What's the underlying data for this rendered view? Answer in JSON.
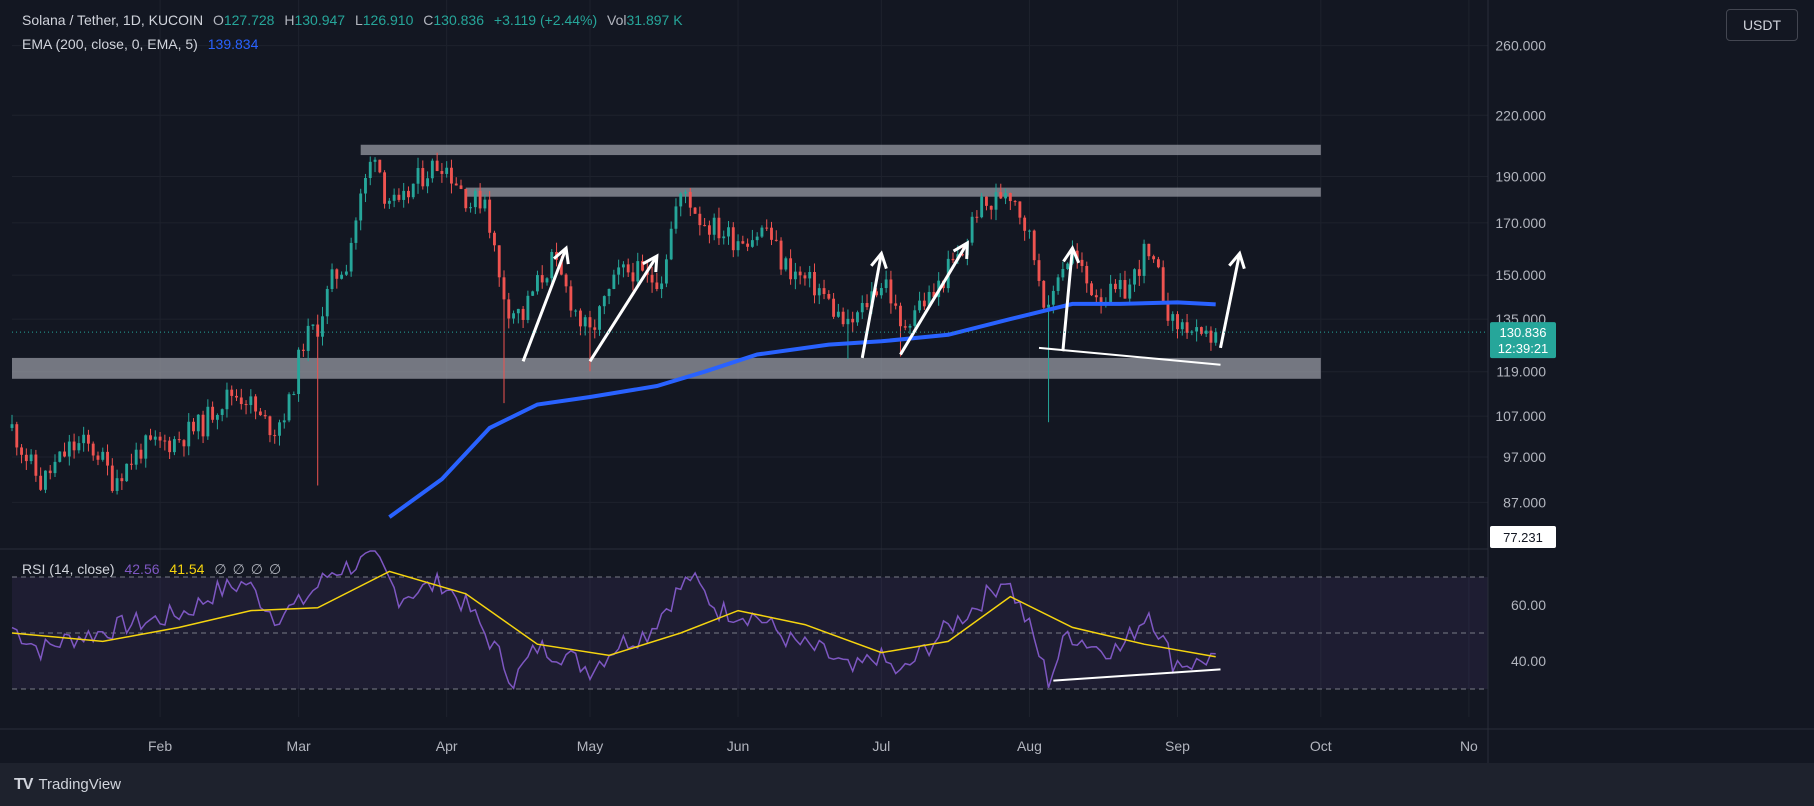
{
  "header": {
    "symbol": "Solana / Tether, 1D, KUCOIN",
    "open_label": "O",
    "open": "127.728",
    "high_label": "H",
    "high": "130.947",
    "low_label": "L",
    "low": "126.910",
    "close_label": "C",
    "close": "130.836",
    "change": "+3.119 (+2.44%)",
    "vol_label": "Vol",
    "volume": "31.897 K",
    "ema_label": "EMA (200, close, 0, EMA, 5)",
    "ema_value": "139.834"
  },
  "currency": "USDT",
  "price_tag": {
    "value": "130.836",
    "countdown": "12:39:21"
  },
  "scale_tag": "77.231",
  "rsi": {
    "label": "RSI (14, close)",
    "value": "42.56",
    "ma_value": "41.54",
    "empty_values": [
      "∅",
      "∅",
      "∅",
      "∅"
    ]
  },
  "brand": {
    "name": "TradingView",
    "mark": "TV"
  },
  "colors": {
    "up": "#26a69a",
    "down": "#ef5350",
    "ema": "#2962ff",
    "rsi": "#7e57c2",
    "rsi_ma": "#f5d40f",
    "zone": "#9598a1"
  },
  "chart_data": [
    {
      "type": "candlestick",
      "title": "Solana / Tether, 1D, KUCOIN",
      "y_scale": "log",
      "ylim": [
        78,
        290
      ],
      "price_ticks": [
        "260.000",
        "220.000",
        "190.000",
        "170.000",
        "150.000",
        "135.000",
        "119.000",
        "107.000",
        "97.000",
        "87.000"
      ],
      "x_ticks": [
        "Feb",
        "Mar",
        "Apr",
        "May",
        "Jun",
        "Jul",
        "Aug",
        "Sep",
        "Oct",
        "No"
      ],
      "x_tick_dates": [
        "2024-02-01",
        "2024-03-01",
        "2024-04-01",
        "2024-05-01",
        "2024-06-01",
        "2024-07-01",
        "2024-08-01",
        "2024-09-01",
        "2024-10-01",
        "2024-11-01"
      ],
      "xlim": [
        "2024-01-01",
        "2024-11-05"
      ],
      "close_series": [
        [
          "2024-01-01",
          104
        ],
        [
          "2024-01-04",
          97
        ],
        [
          "2024-01-07",
          91
        ],
        [
          "2024-01-10",
          95
        ],
        [
          "2024-01-13",
          99
        ],
        [
          "2024-01-16",
          100
        ],
        [
          "2024-01-19",
          98
        ],
        [
          "2024-01-22",
          92
        ],
        [
          "2024-01-25",
          95
        ],
        [
          "2024-01-28",
          99
        ],
        [
          "2024-02-01",
          100
        ],
        [
          "2024-02-04",
          101
        ],
        [
          "2024-02-07",
          103
        ],
        [
          "2024-02-10",
          105
        ],
        [
          "2024-02-13",
          110
        ],
        [
          "2024-02-16",
          113
        ],
        [
          "2024-02-19",
          112
        ],
        [
          "2024-02-22",
          106
        ],
        [
          "2024-02-25",
          104
        ],
        [
          "2024-02-28",
          110
        ],
        [
          "2024-03-02",
          128
        ],
        [
          "2024-03-05",
          133
        ],
        [
          "2024-03-08",
          148
        ],
        [
          "2024-03-11",
          155
        ],
        [
          "2024-03-14",
          180
        ],
        [
          "2024-03-17",
          203
        ],
        [
          "2024-03-19",
          183
        ],
        [
          "2024-03-22",
          175
        ],
        [
          "2024-03-25",
          186
        ],
        [
          "2024-03-28",
          193
        ],
        [
          "2024-03-31",
          197
        ],
        [
          "2024-04-03",
          188
        ],
        [
          "2024-04-06",
          178
        ],
        [
          "2024-04-09",
          181
        ],
        [
          "2024-04-12",
          148
        ],
        [
          "2024-04-14",
          139
        ],
        [
          "2024-04-17",
          136
        ],
        [
          "2024-04-19",
          144
        ],
        [
          "2024-04-23",
          155
        ],
        [
          "2024-04-26",
          145
        ],
        [
          "2024-04-29",
          134
        ],
        [
          "2024-05-01",
          130
        ],
        [
          "2024-05-04",
          140
        ],
        [
          "2024-05-07",
          150
        ],
        [
          "2024-05-10",
          152
        ],
        [
          "2024-05-13",
          148
        ],
        [
          "2024-05-16",
          150
        ],
        [
          "2024-05-19",
          176
        ],
        [
          "2024-05-21",
          183
        ],
        [
          "2024-05-24",
          172
        ],
        [
          "2024-05-27",
          168
        ],
        [
          "2024-05-31",
          164
        ],
        [
          "2024-06-04",
          165
        ],
        [
          "2024-06-07",
          168
        ],
        [
          "2024-06-10",
          155
        ],
        [
          "2024-06-14",
          149
        ],
        [
          "2024-06-18",
          145
        ],
        [
          "2024-06-21",
          138
        ],
        [
          "2024-06-24",
          132
        ],
        [
          "2024-06-27",
          138
        ],
        [
          "2024-06-30",
          146
        ],
        [
          "2024-07-02",
          148
        ],
        [
          "2024-07-05",
          131
        ],
        [
          "2024-07-08",
          139
        ],
        [
          "2024-07-12",
          143
        ],
        [
          "2024-07-15",
          152
        ],
        [
          "2024-07-18",
          158
        ],
        [
          "2024-07-21",
          176
        ],
        [
          "2024-07-24",
          177
        ],
        [
          "2024-07-27",
          185
        ],
        [
          "2024-07-29",
          181
        ],
        [
          "2024-08-01",
          164
        ],
        [
          "2024-08-03",
          150
        ],
        [
          "2024-08-05",
          136
        ],
        [
          "2024-08-07",
          152
        ],
        [
          "2024-08-10",
          158
        ],
        [
          "2024-08-13",
          147
        ],
        [
          "2024-08-16",
          143
        ],
        [
          "2024-08-19",
          143
        ],
        [
          "2024-08-22",
          146
        ],
        [
          "2024-08-25",
          158
        ],
        [
          "2024-08-28",
          149
        ],
        [
          "2024-08-31",
          133
        ],
        [
          "2024-09-03",
          133
        ],
        [
          "2024-09-06",
          127
        ],
        [
          "2024-09-09",
          130.836
        ]
      ],
      "ema_200": [
        [
          "2024-03-10",
          75
        ],
        [
          "2024-03-20",
          84
        ],
        [
          "2024-03-31",
          92
        ],
        [
          "2024-04-10",
          104
        ],
        [
          "2024-04-20",
          110
        ],
        [
          "2024-05-01",
          112
        ],
        [
          "2024-05-15",
          115
        ],
        [
          "2024-05-25",
          119
        ],
        [
          "2024-06-05",
          124
        ],
        [
          "2024-06-20",
          127
        ],
        [
          "2024-07-01",
          128
        ],
        [
          "2024-07-15",
          130
        ],
        [
          "2024-07-28",
          135
        ],
        [
          "2024-08-10",
          140
        ],
        [
          "2024-08-20",
          140
        ],
        [
          "2024-09-01",
          140.5
        ],
        [
          "2024-09-09",
          139.834
        ]
      ],
      "zones": [
        {
          "dates": [
            "2024-03-14",
            "2024-10-01"
          ],
          "price": [
            200,
            205
          ]
        },
        {
          "dates": [
            "2024-04-05",
            "2024-10-01"
          ],
          "price": [
            181,
            185
          ]
        },
        {
          "dates": [
            "2024-01-01",
            "2024-10-01"
          ],
          "price": [
            117,
            123
          ]
        }
      ],
      "arrows": [
        {
          "from": [
            "2024-04-17",
            122
          ],
          "to": [
            "2024-04-26",
            160
          ]
        },
        {
          "from": [
            "2024-05-01",
            122
          ],
          "to": [
            "2024-05-15",
            157
          ]
        },
        {
          "from": [
            "2024-06-27",
            123
          ],
          "to": [
            "2024-07-01",
            158
          ]
        },
        {
          "from": [
            "2024-07-05",
            124
          ],
          "to": [
            "2024-07-19",
            162
          ]
        },
        {
          "from": [
            "2024-08-08",
            125
          ],
          "to": [
            "2024-08-10",
            160
          ]
        },
        {
          "from": [
            "2024-09-10",
            126
          ],
          "to": [
            "2024-09-14",
            158
          ]
        }
      ],
      "trendline": {
        "from": [
          "2024-08-03",
          126
        ],
        "to": [
          "2024-09-10",
          121
        ]
      }
    },
    {
      "type": "line",
      "title": "RSI (14, close)",
      "ylim": [
        20,
        80
      ],
      "ticks": [
        "60.00",
        "40.00"
      ],
      "bands": [
        30,
        50,
        70
      ],
      "rsi_series": [
        [
          "2024-01-01",
          52
        ],
        [
          "2024-01-07",
          44
        ],
        [
          "2024-01-13",
          48
        ],
        [
          "2024-01-19",
          50
        ],
        [
          "2024-01-25",
          53
        ],
        [
          "2024-02-01",
          55
        ],
        [
          "2024-02-07",
          58
        ],
        [
          "2024-02-13",
          65
        ],
        [
          "2024-02-19",
          68
        ],
        [
          "2024-02-25",
          56
        ],
        [
          "2024-03-01",
          60
        ],
        [
          "2024-03-08",
          72
        ],
        [
          "2024-03-14",
          75
        ],
        [
          "2024-03-17",
          77
        ],
        [
          "2024-03-22",
          63
        ],
        [
          "2024-03-31",
          68
        ],
        [
          "2024-04-06",
          58
        ],
        [
          "2024-04-12",
          42
        ],
        [
          "2024-04-15",
          33
        ],
        [
          "2024-04-20",
          45
        ],
        [
          "2024-04-26",
          42
        ],
        [
          "2024-05-01",
          37
        ],
        [
          "2024-05-07",
          46
        ],
        [
          "2024-05-13",
          50
        ],
        [
          "2024-05-19",
          64
        ],
        [
          "2024-05-22",
          70
        ],
        [
          "2024-05-28",
          58
        ],
        [
          "2024-06-05",
          56
        ],
        [
          "2024-06-12",
          47
        ],
        [
          "2024-06-19",
          43
        ],
        [
          "2024-06-25",
          36
        ],
        [
          "2024-06-30",
          42
        ],
        [
          "2024-07-05",
          35
        ],
        [
          "2024-07-10",
          44
        ],
        [
          "2024-07-15",
          52
        ],
        [
          "2024-07-21",
          60
        ],
        [
          "2024-07-27",
          70
        ],
        [
          "2024-08-01",
          52
        ],
        [
          "2024-08-05",
          33
        ],
        [
          "2024-08-09",
          50
        ],
        [
          "2024-08-15",
          45
        ],
        [
          "2024-08-20",
          44
        ],
        [
          "2024-08-26",
          58
        ],
        [
          "2024-08-31",
          40
        ],
        [
          "2024-09-05",
          39
        ],
        [
          "2024-09-09",
          42.56
        ]
      ],
      "rsi_ma_series": [
        [
          "2024-01-01",
          50
        ],
        [
          "2024-01-20",
          47
        ],
        [
          "2024-02-05",
          52
        ],
        [
          "2024-02-20",
          58
        ],
        [
          "2024-03-05",
          59
        ],
        [
          "2024-03-20",
          72
        ],
        [
          "2024-04-05",
          64
        ],
        [
          "2024-04-20",
          46
        ],
        [
          "2024-05-05",
          42
        ],
        [
          "2024-05-20",
          50
        ],
        [
          "2024-06-01",
          58
        ],
        [
          "2024-06-15",
          53
        ],
        [
          "2024-07-01",
          43
        ],
        [
          "2024-07-15",
          47
        ],
        [
          "2024-07-28",
          63
        ],
        [
          "2024-08-10",
          52
        ],
        [
          "2024-08-25",
          46
        ],
        [
          "2024-09-09",
          41.54
        ]
      ],
      "trendline": {
        "from": [
          "2024-08-06",
          33
        ],
        "to": [
          "2024-09-10",
          37
        ]
      }
    }
  ]
}
